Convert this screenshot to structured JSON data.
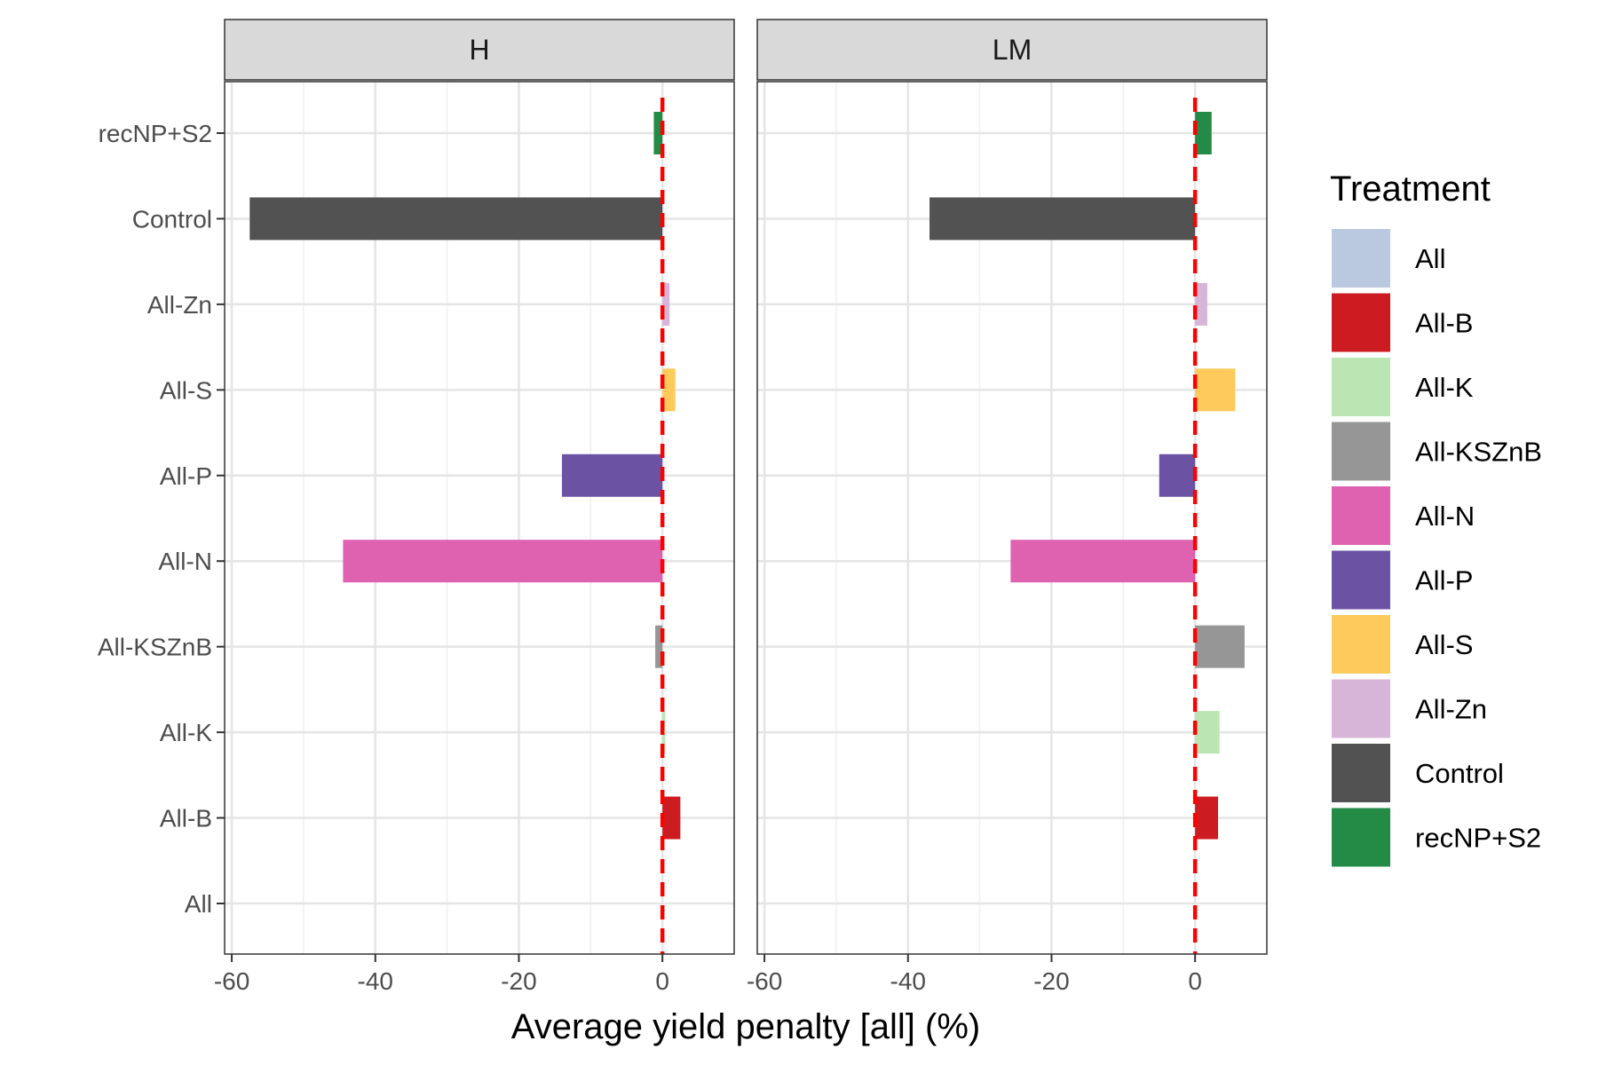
{
  "chart_data": {
    "type": "bar",
    "orientation": "horizontal",
    "xlabel": "Average yield penalty [all] (%)",
    "xlim": [
      -61,
      10
    ],
    "xticks": [
      -60,
      -40,
      -20,
      0
    ],
    "xtick_labels": [
      "-60",
      "-40",
      "-20",
      "0"
    ],
    "reference_line": {
      "x": 0,
      "color": "#ff0000",
      "style": "dashed"
    },
    "categories": [
      "All",
      "All-B",
      "All-K",
      "All-KSZnB",
      "All-N",
      "All-P",
      "All-S",
      "All-Zn",
      "Control",
      "recNP+S2"
    ],
    "facets": [
      {
        "name": "H",
        "values": [
          0,
          2.5,
          0.4,
          -1.0,
          -44.5,
          -14,
          1.8,
          1.0,
          -57.5,
          -1.2
        ]
      },
      {
        "name": "LM",
        "values": [
          0,
          3.2,
          3.4,
          6.9,
          -25.7,
          -5.0,
          5.6,
          1.7,
          -37.0,
          2.3
        ]
      }
    ],
    "legend": {
      "title": "Treatment",
      "position": "right",
      "items": [
        {
          "label": "All",
          "color": "#bac9e0"
        },
        {
          "label": "All-B",
          "color": "#cc1c22"
        },
        {
          "label": "All-K",
          "color": "#bbe5b2"
        },
        {
          "label": "All-KSZnB",
          "color": "#969696"
        },
        {
          "label": "All-N",
          "color": "#df62b0"
        },
        {
          "label": "All-P",
          "color": "#6b52a3"
        },
        {
          "label": "All-S",
          "color": "#feca5c"
        },
        {
          "label": "All-Zn",
          "color": "#d7b5d8"
        },
        {
          "label": "Control",
          "color": "#525252"
        },
        {
          "label": "recNP+S2",
          "color": "#238b45"
        }
      ]
    },
    "grid": true
  }
}
